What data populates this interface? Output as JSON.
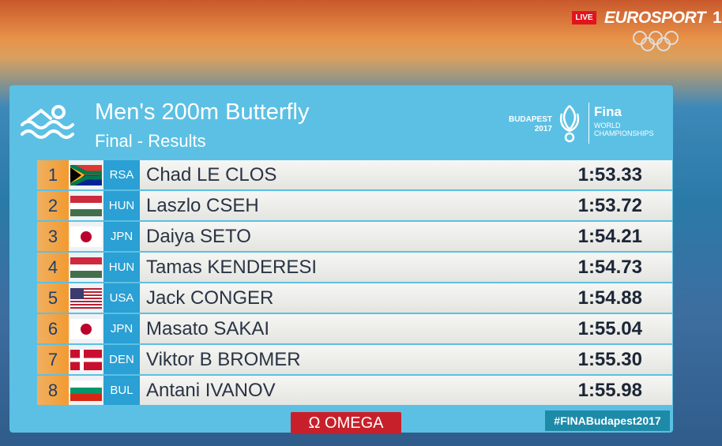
{
  "broadcast": {
    "live": "LIVE",
    "channel": "EUROSPORT",
    "number": "1"
  },
  "header": {
    "title": "Men's 200m Butterfly",
    "subtitle": "Final - Results"
  },
  "logo": {
    "city": "BUDAPEST",
    "year": "2017",
    "org": "Fina",
    "line1": "WORLD",
    "line2": "CHAMPIONSHIPS"
  },
  "results": [
    {
      "rank": 1,
      "country": "RSA",
      "name": "Chad LE CLOS",
      "time": "1:53.33"
    },
    {
      "rank": 2,
      "country": "HUN",
      "name": "Laszlo CSEH",
      "time": "1:53.72"
    },
    {
      "rank": 3,
      "country": "JPN",
      "name": "Daiya SETO",
      "time": "1:54.21"
    },
    {
      "rank": 4,
      "country": "HUN",
      "name": "Tamas KENDERESI",
      "time": "1:54.73"
    },
    {
      "rank": 5,
      "country": "USA",
      "name": "Jack CONGER",
      "time": "1:54.88"
    },
    {
      "rank": 6,
      "country": "JPN",
      "name": "Masato SAKAI",
      "time": "1:55.04"
    },
    {
      "rank": 7,
      "country": "DEN",
      "name": "Viktor B BROMER",
      "time": "1:55.30"
    },
    {
      "rank": 8,
      "country": "BUL",
      "name": "Antani IVANOV",
      "time": "1:55.98"
    }
  ],
  "footer": {
    "sponsor_symbol": "Ω",
    "sponsor": "OMEGA",
    "hashtag": "#FINABudapest2017"
  }
}
